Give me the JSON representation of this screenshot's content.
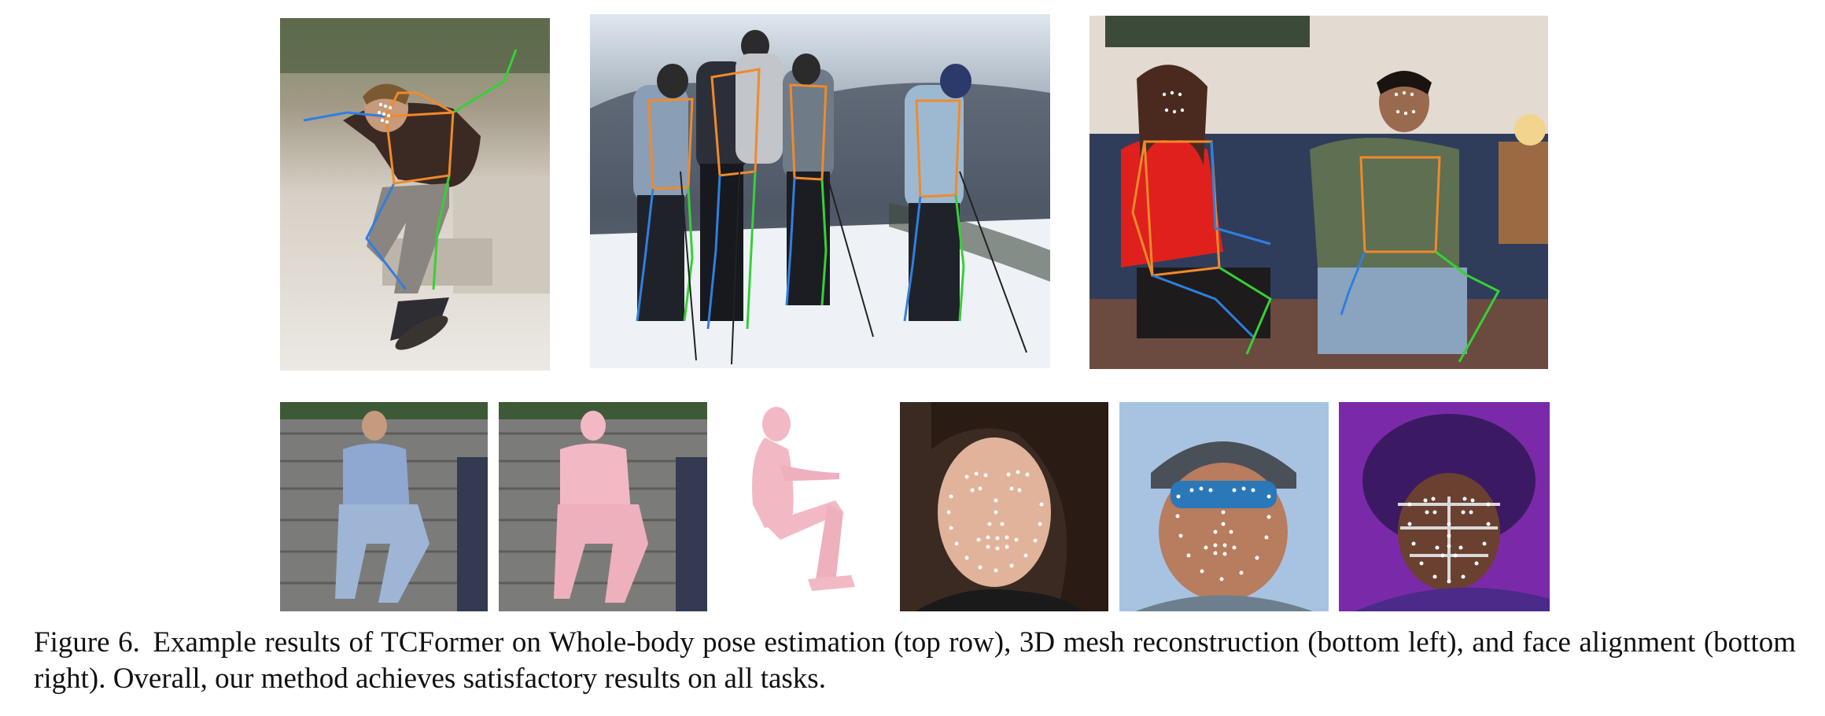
{
  "figure": {
    "number_label": "Figure 6.",
    "caption_text": "Example results of TCFormer on Whole-body pose estimation (top row), 3D mesh reconstruction (bottom left), and face alignment (bottom right). Overall, our method achieves satisfactory results on all tasks."
  },
  "colors": {
    "skeleton_left": "#2f7fe0",
    "skeleton_right": "#37d037",
    "skeleton_body": "#f08a2a",
    "face_landmarks": "#ffffff",
    "mesh": "#f2b9c4"
  }
}
